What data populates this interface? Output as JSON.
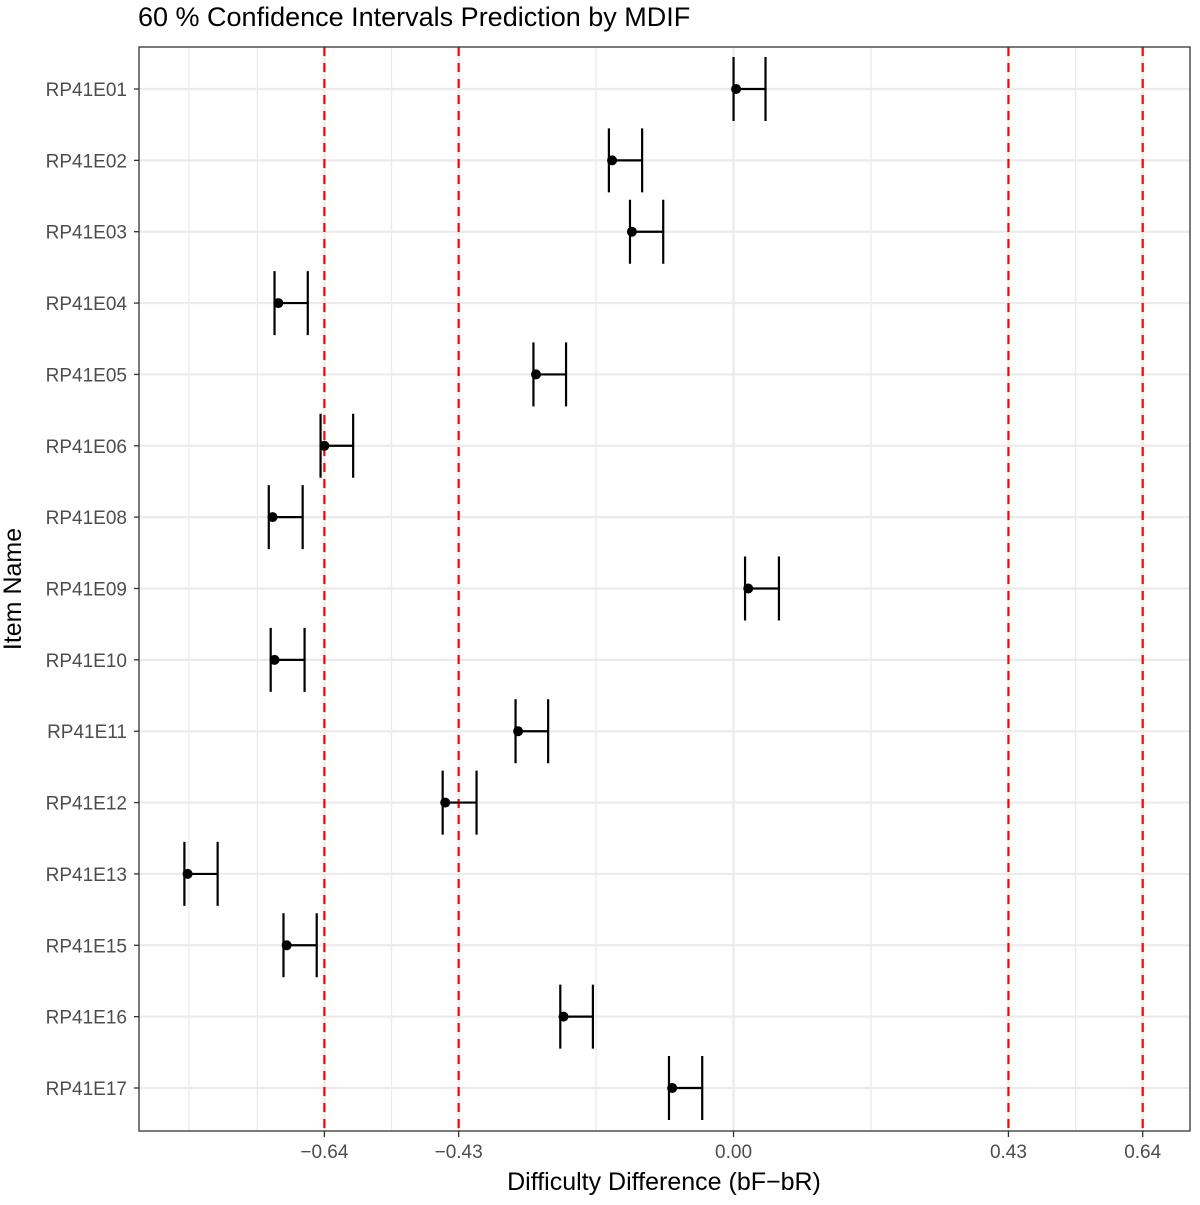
{
  "chart_data": {
    "type": "errorbar",
    "title": "60 % Confidence Intervals Prediction by MDIF",
    "xlabel": "Difficulty Difference (bF−bR)",
    "ylabel": "Item Name",
    "xlim": [
      -0.93,
      0.714
    ],
    "x_ticks": [
      -0.64,
      -0.43,
      0.0,
      0.43,
      0.64
    ],
    "x_tick_labels": [
      "−0.64",
      "−0.43",
      "0.00",
      "0.43",
      "0.64"
    ],
    "minor_gridlines": [
      -0.852,
      -0.745,
      -0.535,
      -0.215,
      0.215,
      0.535
    ],
    "reference_lines": [
      -0.64,
      -0.43,
      0.43,
      0.64
    ],
    "reference_line_color": "#ff0000",
    "grid": true,
    "items": [
      {
        "name": "RP41E01",
        "estimate": 0.004,
        "lower": 0.0,
        "upper": 0.05
      },
      {
        "name": "RP41E02",
        "estimate": -0.19,
        "lower": -0.195,
        "upper": -0.143
      },
      {
        "name": "RP41E03",
        "estimate": -0.159,
        "lower": -0.162,
        "upper": -0.11
      },
      {
        "name": "RP41E04",
        "estimate": -0.712,
        "lower": -0.718,
        "upper": -0.666
      },
      {
        "name": "RP41E05",
        "estimate": -0.309,
        "lower": -0.313,
        "upper": -0.262
      },
      {
        "name": "RP41E06",
        "estimate": -0.64,
        "lower": -0.646,
        "upper": -0.595
      },
      {
        "name": "RP41E08",
        "estimate": -0.721,
        "lower": -0.727,
        "upper": -0.674
      },
      {
        "name": "RP41E09",
        "estimate": 0.023,
        "lower": 0.018,
        "upper": 0.071
      },
      {
        "name": "RP41E10",
        "estimate": -0.718,
        "lower": -0.724,
        "upper": -0.671
      },
      {
        "name": "RP41E11",
        "estimate": -0.337,
        "lower": -0.341,
        "upper": -0.29
      },
      {
        "name": "RP41E12",
        "estimate": -0.451,
        "lower": -0.455,
        "upper": -0.402
      },
      {
        "name": "RP41E13",
        "estimate": -0.854,
        "lower": -0.859,
        "upper": -0.807
      },
      {
        "name": "RP41E15",
        "estimate": -0.699,
        "lower": -0.704,
        "upper": -0.652
      },
      {
        "name": "RP41E16",
        "estimate": -0.266,
        "lower": -0.271,
        "upper": -0.22
      },
      {
        "name": "RP41E17",
        "estimate": -0.096,
        "lower": -0.101,
        "upper": -0.049
      }
    ]
  }
}
